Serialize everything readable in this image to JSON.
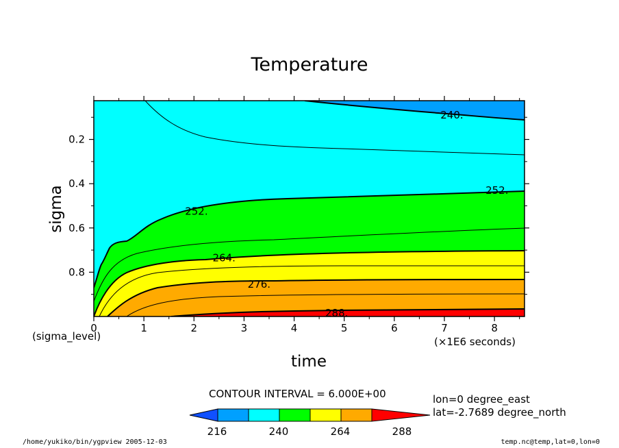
{
  "chart_data": {
    "type": "contour",
    "title": "Temperature",
    "xlabel": "time",
    "ylabel": "sigma",
    "x_unit_label": "(×1E6 seconds)",
    "y_unit_label": "(sigma_level)",
    "xlim": [
      0,
      8.6
    ],
    "ylim": [
      0.025,
      1.0
    ],
    "y_inverted": true,
    "x_ticks": [
      "0",
      "1",
      "2",
      "3",
      "4",
      "5",
      "6",
      "7",
      "8"
    ],
    "y_ticks": [
      "0.2",
      "0.4",
      "0.6",
      "0.8"
    ],
    "contour_interval": "CONTOUR INTERVAL = 6.000E+00",
    "contour_labels": [
      {
        "text": "240.",
        "x": 7.15,
        "y": 0.09
      },
      {
        "text": "252.",
        "x": 8.05,
        "y": 0.43
      },
      {
        "text": "252.",
        "x": 2.05,
        "y": 0.525
      },
      {
        "text": "264.",
        "x": 2.6,
        "y": 0.735
      },
      {
        "text": "276.",
        "x": 3.3,
        "y": 0.855
      },
      {
        "text": "288.",
        "x": 4.85,
        "y": 0.985
      }
    ],
    "colorbar": {
      "ticks": [
        "216",
        "240",
        "264",
        "288"
      ],
      "colors": [
        "#1050ff",
        "#00a0ff",
        "#00ffff",
        "#00ff00",
        "#ffff00",
        "#ffaa00",
        "#ff0000"
      ]
    }
  },
  "info": {
    "lon": "lon=0 degree_east",
    "lat": "lat=-2.7689 degree_north"
  },
  "footer": {
    "left": "/home/yukiko/bin/ygpview  2005-12-03",
    "right": "temp.nc@temp,lat=0,lon=0"
  }
}
